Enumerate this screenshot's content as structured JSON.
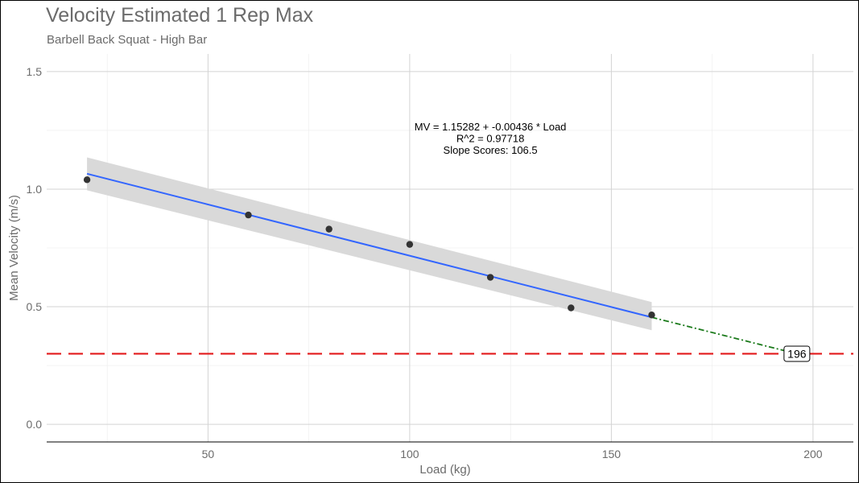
{
  "chart_data": {
    "type": "scatter",
    "title": "Velocity Estimated 1 Rep Max",
    "subtitle": "Barbell Back Squat - High Bar",
    "xlabel": "Load (kg)",
    "ylabel": "Mean Velocity (m/s)",
    "xlim": [
      10,
      210
    ],
    "ylim": [
      -0.075,
      1.575
    ],
    "x_ticks": [
      50,
      100,
      150,
      200
    ],
    "y_ticks": [
      0.0,
      0.5,
      1.0,
      1.5
    ],
    "x_tick_labels": [
      "50",
      "100",
      "150",
      "200"
    ],
    "y_tick_labels": [
      "0.0",
      "0.5",
      "1.0",
      "1.5"
    ],
    "grid": true,
    "points": {
      "x": [
        20,
        60,
        80,
        100,
        120,
        140,
        160
      ],
      "y": [
        1.04,
        0.89,
        0.83,
        0.765,
        0.625,
        0.495,
        0.465
      ]
    },
    "regression": {
      "intercept": 1.15282,
      "slope": -0.00436,
      "x_range": [
        20,
        160
      ],
      "confidence_band": {
        "x": [
          20,
          160
        ],
        "lower": [
          0.995,
          0.4
        ],
        "upper": [
          1.135,
          0.52
        ]
      },
      "color": "#3366ff",
      "band_color": "#d9d9d9"
    },
    "extrapolation": {
      "x": [
        160,
        196
      ],
      "y": [
        0.455,
        0.3
      ],
      "color": "#1b7a1b"
    },
    "threshold": {
      "y": 0.3,
      "color": "#e31a1c"
    },
    "annotation": {
      "lines": [
        "MV = 1.15282 + -0.00436 * Load",
        "R^2 = 0.97718",
        "Slope Scores: 106.5"
      ],
      "x": 120,
      "y": 1.25
    },
    "e1rm_label": {
      "text": "196",
      "x": 196,
      "y": 0.3
    },
    "point_color": "#333333",
    "axis_text_color": "#6b6b6b",
    "grid_color": "#d3d3d3"
  }
}
